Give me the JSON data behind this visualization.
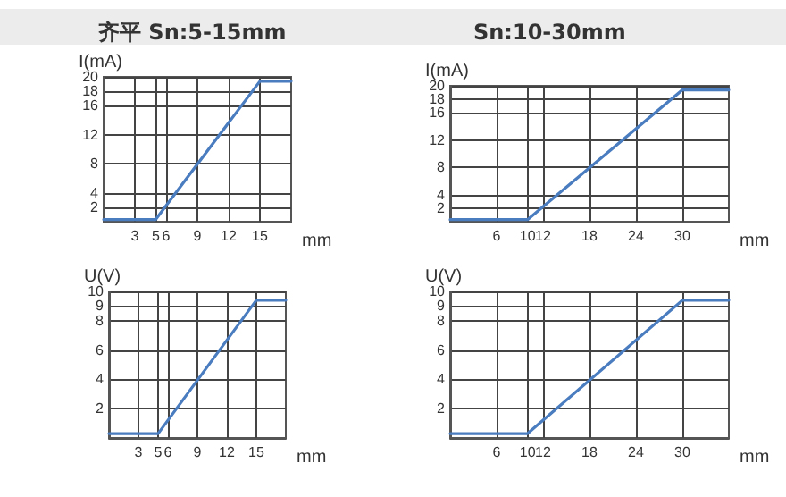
{
  "chart_data": [
    {
      "type": "line",
      "title": "齐平 Sn:5-15mm",
      "xlabel": "mm",
      "ylabel": "I(mA)",
      "xlim": [
        0,
        18
      ],
      "xticks": [
        3,
        5,
        6,
        9,
        12,
        15
      ],
      "ylim": [
        0,
        20
      ],
      "yticks": [
        2,
        4,
        8,
        12,
        16,
        18,
        20
      ],
      "grid": true,
      "marker": "none",
      "line_style": "solid",
      "x": [
        0,
        5,
        15,
        18
      ],
      "series": [
        {
          "color": "#4a7cc0",
          "values": [
            0.3,
            0.3,
            19.4,
            19.4
          ]
        }
      ]
    },
    {
      "type": "line",
      "title": "Sn:10-30mm",
      "xlabel": "mm",
      "ylabel": "I(mA)",
      "xlim": [
        0,
        36
      ],
      "xticks": [
        6,
        10,
        12,
        18,
        24,
        30
      ],
      "ylim": [
        0,
        20
      ],
      "yticks": [
        2,
        4,
        8,
        12,
        16,
        18,
        20
      ],
      "grid": true,
      "marker": "none",
      "line_style": "solid",
      "x": [
        0,
        10,
        30,
        36
      ],
      "series": [
        {
          "color": "#4a7cc0",
          "values": [
            0.3,
            0.3,
            19.4,
            19.4
          ]
        }
      ]
    },
    {
      "type": "line",
      "xlabel": "mm",
      "ylabel": "U(V)",
      "xlim": [
        0,
        18
      ],
      "xticks": [
        3,
        5,
        6,
        9,
        12,
        15
      ],
      "ylim": [
        0,
        10
      ],
      "yticks": [
        2,
        4,
        6,
        8,
        9,
        10
      ],
      "grid": true,
      "marker": "none",
      "line_style": "solid",
      "x": [
        0,
        5,
        15,
        18
      ],
      "series": [
        {
          "color": "#4a7cc0",
          "values": [
            0.3,
            0.3,
            9.4,
            9.4
          ]
        }
      ]
    },
    {
      "type": "line",
      "xlabel": "mm",
      "ylabel": "U(V)",
      "xlim": [
        0,
        36
      ],
      "xticks": [
        6,
        10,
        12,
        18,
        24,
        30
      ],
      "ylim": [
        0,
        10
      ],
      "yticks": [
        2,
        4,
        6,
        8,
        9,
        10
      ],
      "grid": true,
      "marker": "none",
      "line_style": "solid",
      "x": [
        0,
        10,
        30,
        36
      ],
      "series": [
        {
          "color": "#4a7cc0",
          "values": [
            0.3,
            0.3,
            9.4,
            9.4
          ]
        }
      ]
    }
  ]
}
